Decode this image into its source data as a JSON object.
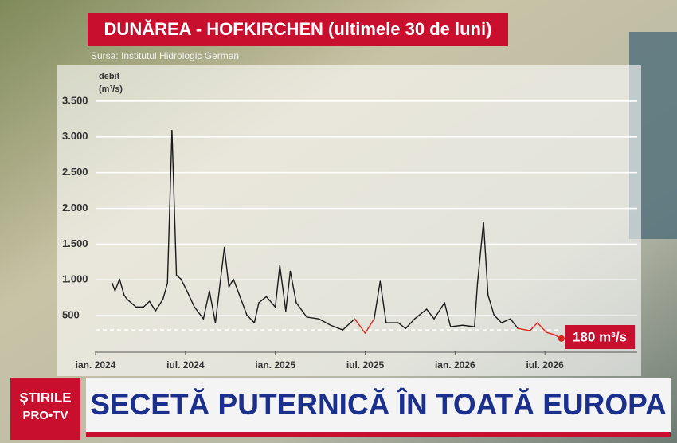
{
  "chart_data": {
    "type": "line",
    "title": "DUNĂREA - HOFKIRCHEN (ultimele 30 de luni)",
    "source": "Sursa: Institutul Hidrologic German",
    "y_label": "debit",
    "y_unit": "(m³/s)",
    "annotation": "180 m³/s",
    "x": [
      1.1,
      1.3,
      1.6,
      1.9,
      2.1,
      2.7,
      3.2,
      3.6,
      4.0,
      4.5,
      4.8,
      5.1,
      5.4,
      5.7,
      6.1,
      6.6,
      7.2,
      7.6,
      8.0,
      8.6,
      8.9,
      9.2,
      9.6,
      10.1,
      10.6,
      10.9,
      11.4,
      12.0,
      12.3,
      12.7,
      13.0,
      13.4,
      14.1,
      14.9,
      15.7,
      16.5,
      17.3,
      18.0,
      18.6,
      19.0,
      19.4,
      20.2,
      20.7,
      21.3,
      22.1,
      22.6,
      23.3,
      23.7,
      24.5,
      25.3,
      25.5,
      25.9,
      26.2,
      26.6,
      27.1,
      27.7,
      28.2,
      29.0,
      29.5,
      30.1,
      30.6,
      31.1
    ],
    "series": [
      {
        "color": "#1a1a1a",
        "low_color": "#e0261b",
        "values": [
          955,
          845,
          1010,
          790,
          730,
          620,
          620,
          700,
          565,
          730,
          955,
          3090,
          1065,
          1010,
          845,
          620,
          455,
          845,
          400,
          1455,
          900,
          1010,
          790,
          510,
          400,
          680,
          765,
          620,
          1200,
          565,
          1120,
          680,
          480,
          455,
          365,
          300,
          455,
          255,
          455,
          980,
          400,
          400,
          320,
          455,
          590,
          455,
          680,
          345,
          365,
          345,
          955,
          1810,
          790,
          510,
          400,
          455,
          320,
          290,
          400,
          265,
          235,
          180
        ]
      }
    ],
    "threshold": 300,
    "xlim": [
      0,
      36
    ],
    "xticks": [
      {
        "value": 0,
        "label": "ian. 2024"
      },
      {
        "value": 6,
        "label": "iul. 2024"
      },
      {
        "value": 12,
        "label": "ian. 2025"
      },
      {
        "value": 18,
        "label": "iul. 2025"
      },
      {
        "value": 24,
        "label": "ian. 2026"
      },
      {
        "value": 30,
        "label": "iul. 2026"
      }
    ],
    "ylim": [
      0,
      3900
    ],
    "yticks": [
      500,
      {
        "value": 1000,
        "label": "1.000"
      },
      {
        "value": 1500,
        "label": "1.500"
      },
      {
        "value": 2000,
        "label": "2.000"
      },
      {
        "value": 2500,
        "label": "2.500"
      },
      {
        "value": 3000,
        "label": "3.000"
      },
      {
        "value": 3500,
        "label": "3.500"
      }
    ],
    "grid": true
  },
  "banner": {
    "logo_top": "ȘTIRILE",
    "logo_bottom": "PRO•TV",
    "headline": "SECETĂ PUTERNICĂ ÎN TOATĂ EUROPA"
  }
}
